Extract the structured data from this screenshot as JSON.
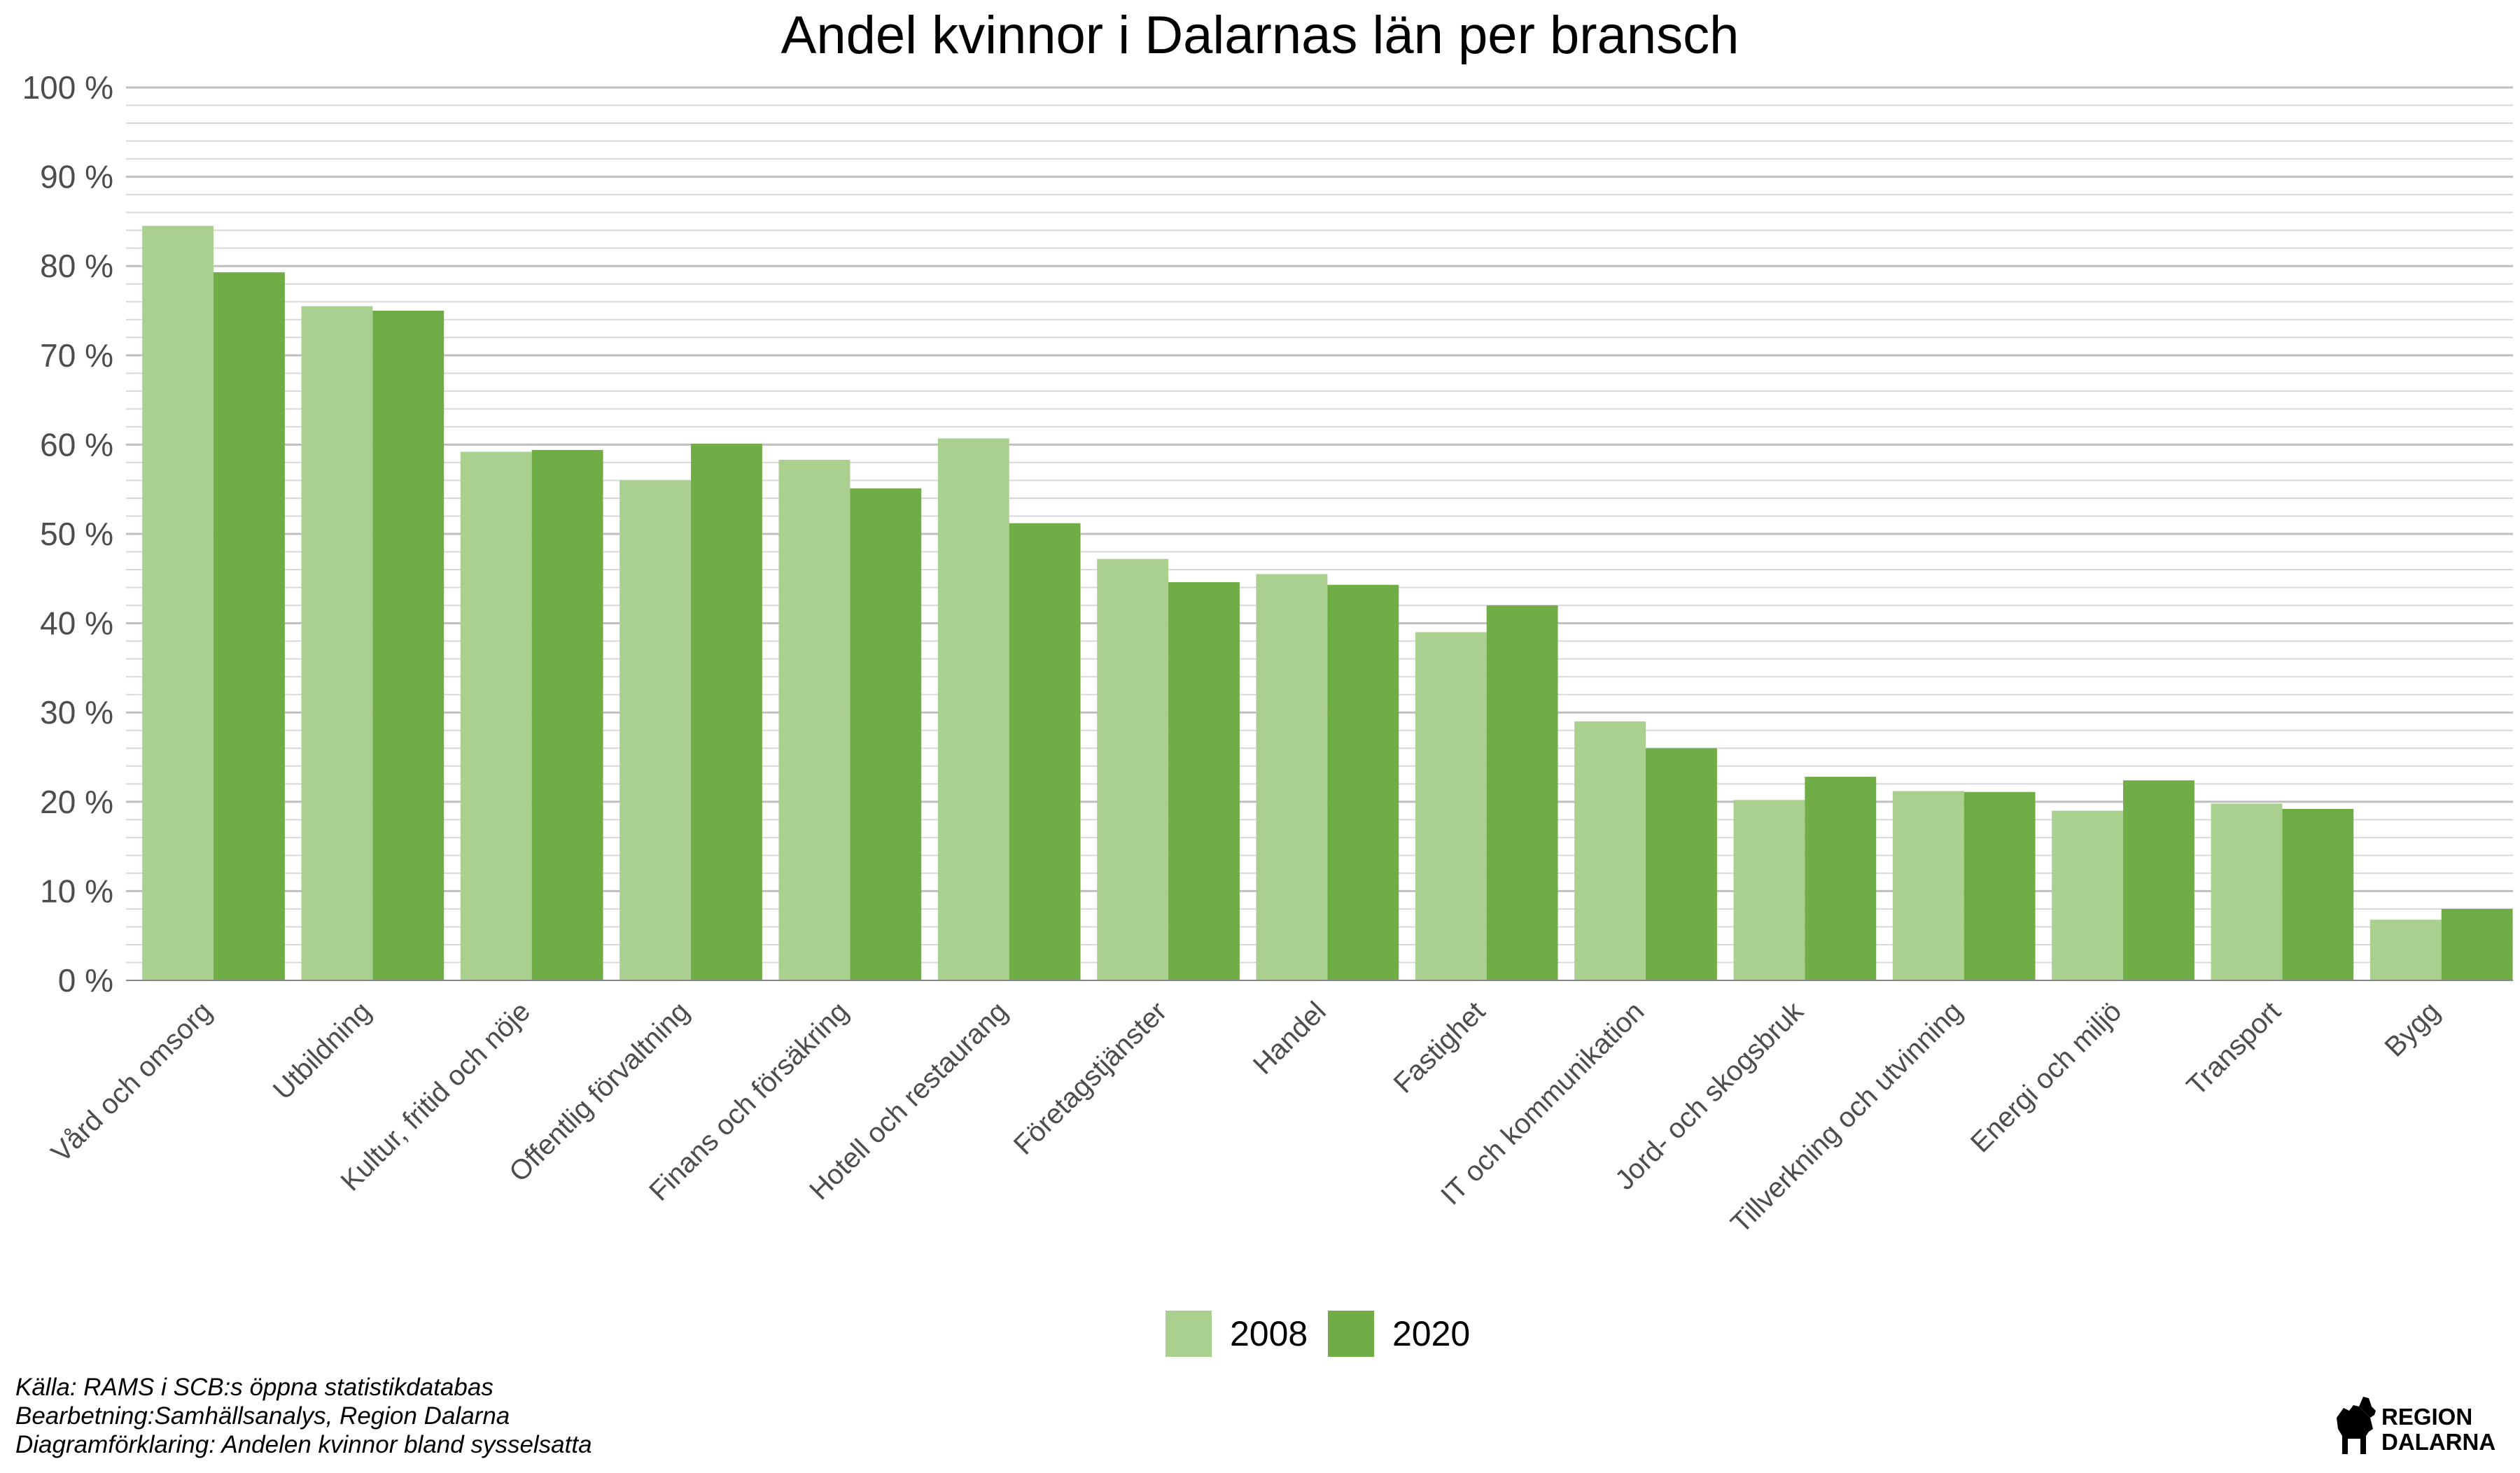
{
  "chart_data": {
    "type": "bar",
    "title": "Andel kvinnor i Dalarnas län per bransch",
    "xlabel": "",
    "ylabel": "",
    "ylim": [
      0,
      100
    ],
    "yticks": [
      0,
      10,
      20,
      30,
      40,
      50,
      60,
      70,
      80,
      90,
      100
    ],
    "ytick_suffix": " %",
    "grid": true,
    "legend_position": "bottom",
    "categories": [
      "Vård och omsorg",
      "Utbildning",
      "Kultur, fritid och nöje",
      "Offentlig förvaltning",
      "Finans och försäkring",
      "Hotell och restaurang",
      "Företagstjänster",
      "Handel",
      "Fastighet",
      "IT och kommunikation",
      "Jord- och skogsbruk",
      "Tillverkning och utvinning",
      "Energi och miljö",
      "Transport",
      "Bygg"
    ],
    "series": [
      {
        "name": "2008",
        "color": "#a9d08e",
        "values": [
          84.5,
          75.5,
          59.2,
          56.0,
          58.3,
          60.7,
          47.2,
          45.5,
          39.0,
          29.0,
          20.2,
          21.2,
          19.0,
          19.8,
          6.8
        ]
      },
      {
        "name": "2020",
        "color": "#70ad47",
        "values": [
          79.3,
          75.0,
          59.4,
          60.1,
          55.1,
          51.2,
          44.6,
          44.3,
          42.0,
          26.0,
          22.8,
          21.1,
          22.4,
          19.2,
          8.0
        ]
      }
    ]
  },
  "footnotes": [
    "Källa: RAMS i SCB:s öppna statistikdatabas",
    "Bearbetning:Samhällsanalys, Region Dalarna",
    "Diagramförklaring: Andelen kvinnor bland sysselsatta"
  ],
  "logo": {
    "line1": "REGION",
    "line2": "DALARNA",
    "color": "#000000"
  }
}
